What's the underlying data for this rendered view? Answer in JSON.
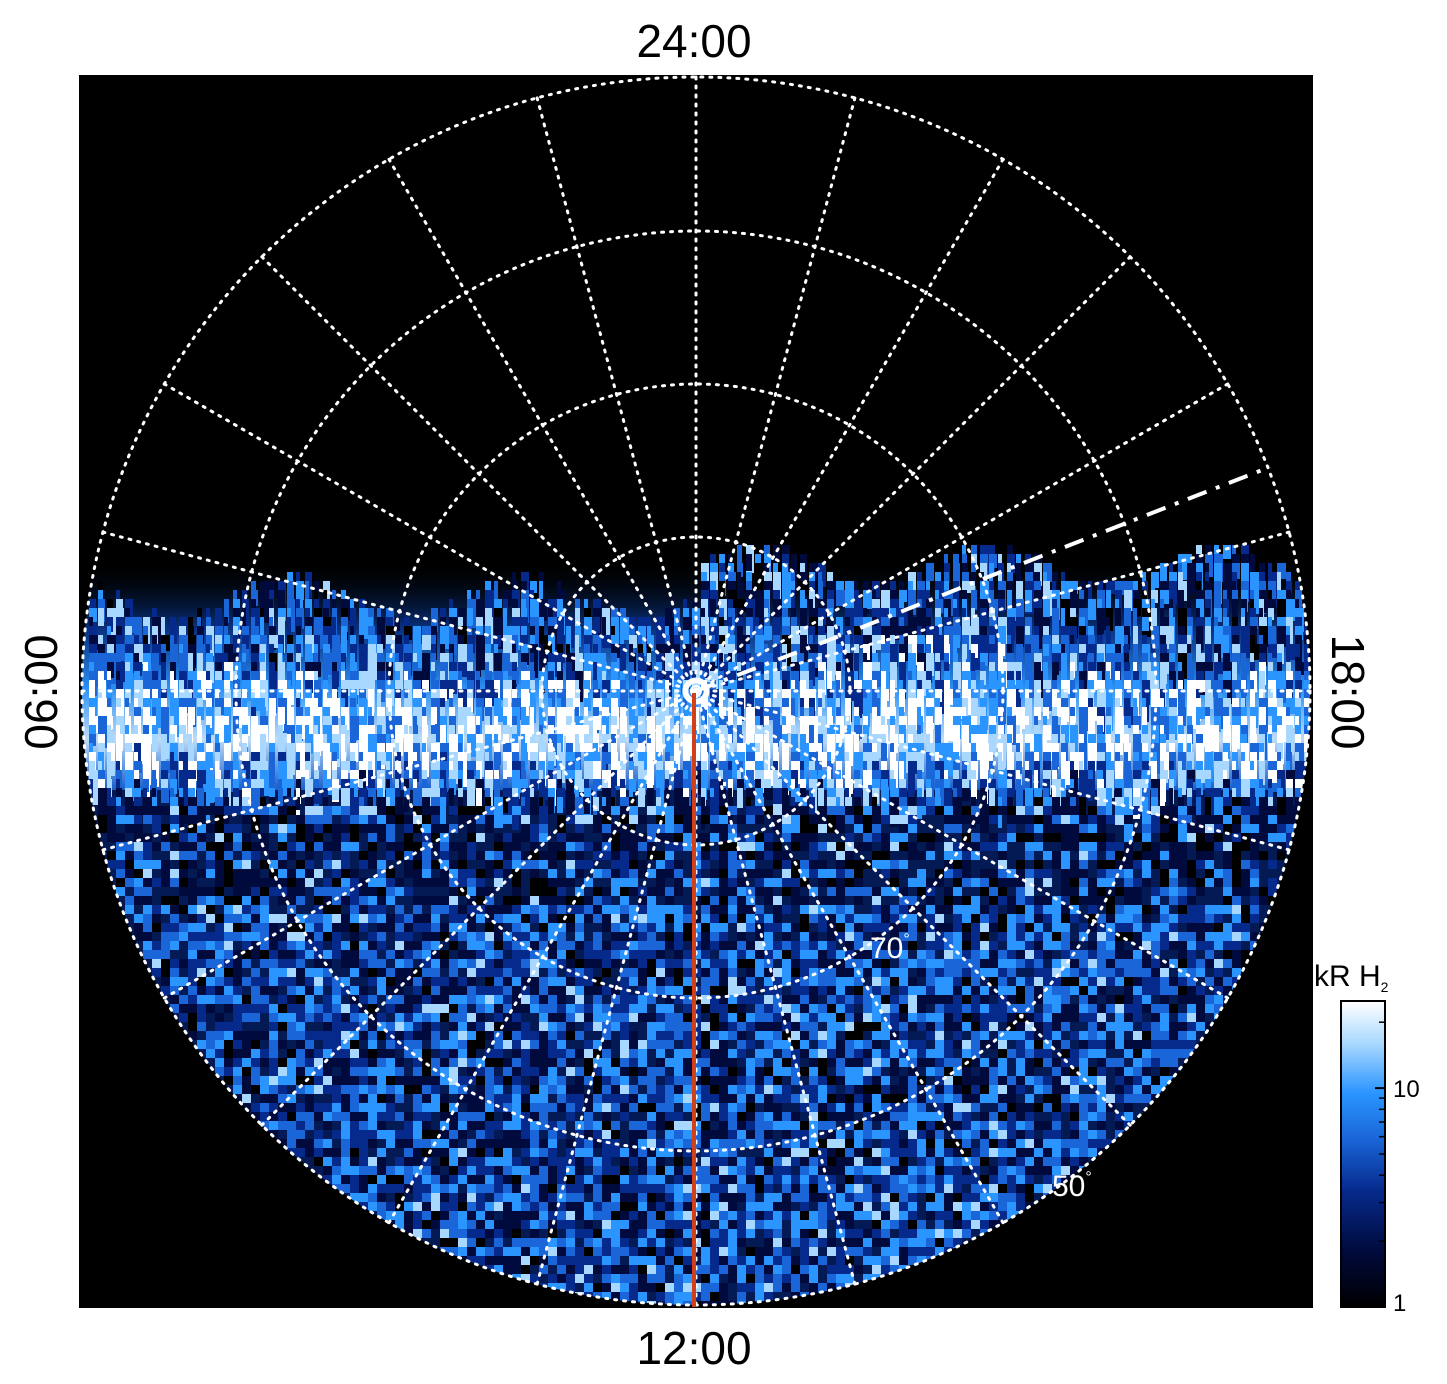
{
  "local_time_labels": {
    "top": "24:00",
    "bottom": "12:00",
    "left": "06:00",
    "right": "18:00"
  },
  "latitude_labels": [
    {
      "text": "70",
      "unit": "°"
    },
    {
      "text": "50",
      "unit": "°"
    }
  ],
  "colorbar": {
    "title": "kR H",
    "title_subscript": "2",
    "scale": "log",
    "range": [
      1,
      25
    ],
    "ticks": [
      {
        "value": 10,
        "label": "10"
      },
      {
        "value": 1,
        "label": "1"
      }
    ],
    "colors": [
      "#000000",
      "#000a3c",
      "#062a8c",
      "#1a66d8",
      "#2b95ff",
      "#a8d8ff",
      "#ffffff"
    ]
  },
  "colors": {
    "background": "#000000",
    "grid": "#ffffff",
    "meridian_line": "#d2401a"
  }
}
